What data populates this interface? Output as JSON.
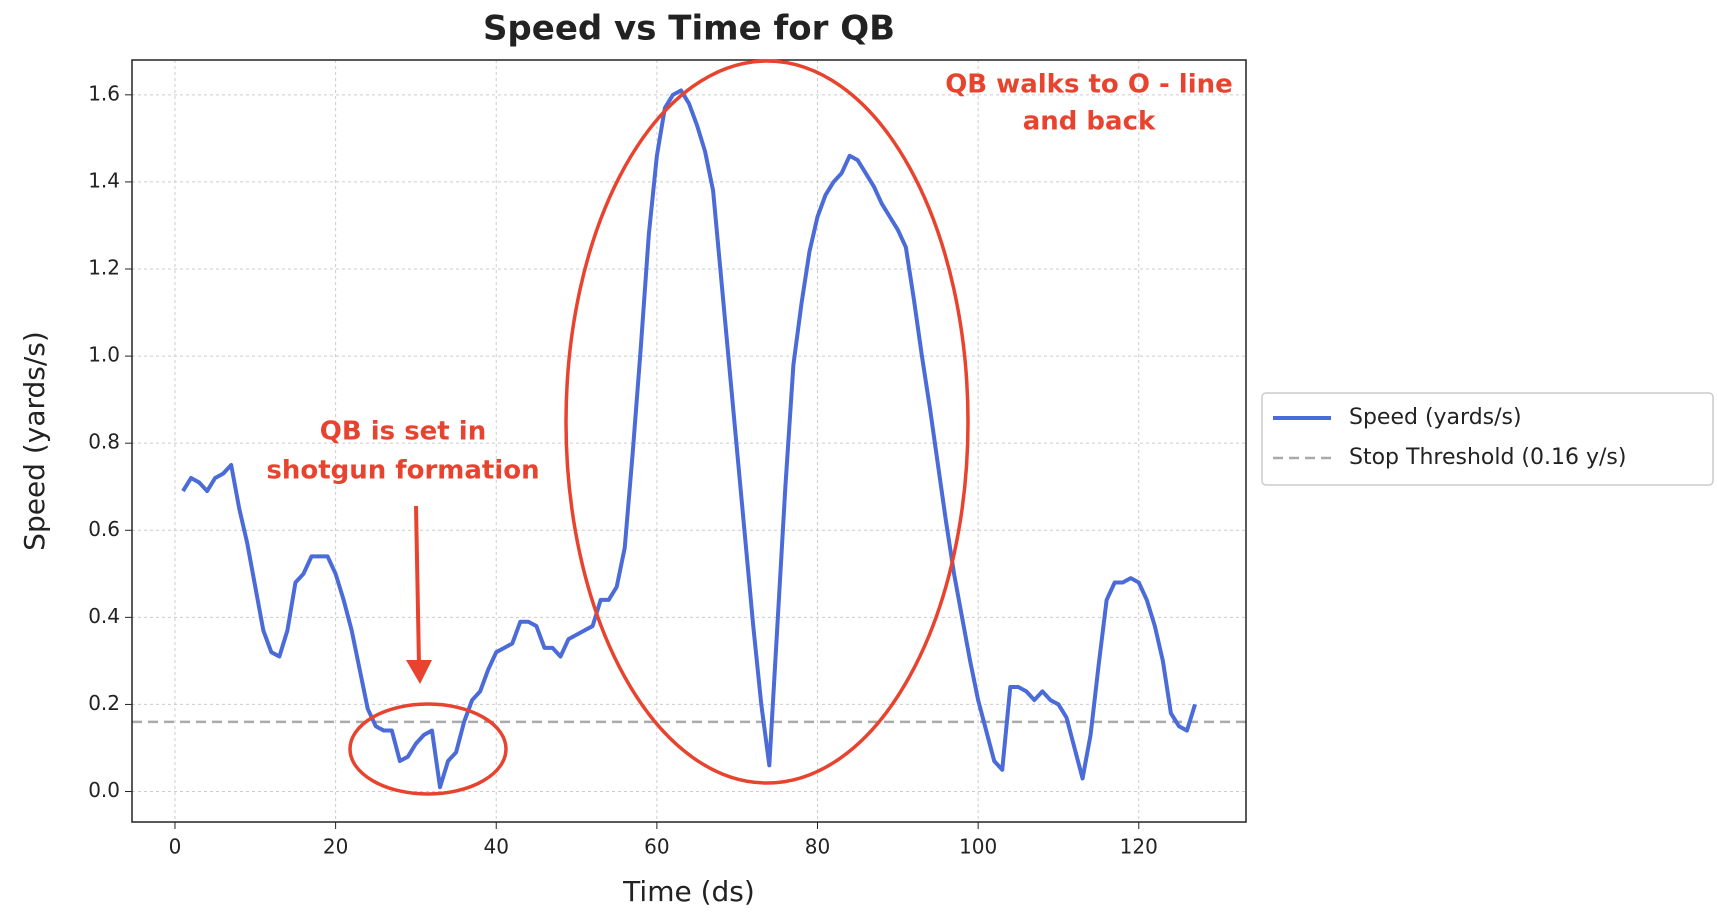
{
  "chart_data": {
    "type": "line",
    "title": "Speed vs Time for QB",
    "x_label": "Time (ds)",
    "y_label": "Speed (yards/s)",
    "x": [
      1,
      2,
      3,
      4,
      5,
      6,
      7,
      8,
      9,
      10,
      11,
      12,
      13,
      14,
      15,
      16,
      17,
      18,
      19,
      20,
      21,
      22,
      23,
      24,
      25,
      26,
      27,
      28,
      29,
      30,
      31,
      32,
      33,
      34,
      35,
      36,
      37,
      38,
      39,
      40,
      41,
      42,
      43,
      44,
      45,
      46,
      47,
      48,
      49,
      50,
      51,
      52,
      53,
      54,
      55,
      56,
      57,
      58,
      59,
      60,
      61,
      62,
      63,
      64,
      65,
      66,
      67,
      68,
      69,
      70,
      71,
      72,
      73,
      74,
      75,
      76,
      77,
      78,
      79,
      80,
      81,
      82,
      83,
      84,
      85,
      86,
      87,
      88,
      89,
      90,
      91,
      92,
      93,
      94,
      95,
      96,
      97,
      98,
      99,
      100,
      101,
      102,
      103,
      104,
      105,
      106,
      107,
      108,
      109,
      110,
      111,
      112,
      113,
      114,
      115,
      116,
      117,
      118,
      119,
      120,
      121,
      122,
      123,
      124,
      125,
      126,
      127
    ],
    "series": [
      {
        "name": "Speed (yards/s)",
        "color": "#4a6bd8",
        "values": [
          0.69,
          0.72,
          0.71,
          0.69,
          0.72,
          0.73,
          0.75,
          0.65,
          0.57,
          0.47,
          0.37,
          0.32,
          0.31,
          0.37,
          0.48,
          0.5,
          0.54,
          0.54,
          0.54,
          0.5,
          0.44,
          0.37,
          0.28,
          0.19,
          0.15,
          0.14,
          0.14,
          0.07,
          0.08,
          0.11,
          0.13,
          0.14,
          0.01,
          0.07,
          0.09,
          0.16,
          0.21,
          0.23,
          0.28,
          0.32,
          0.33,
          0.34,
          0.39,
          0.39,
          0.38,
          0.33,
          0.33,
          0.31,
          0.35,
          0.36,
          0.37,
          0.38,
          0.44,
          0.44,
          0.47,
          0.56,
          0.78,
          1.02,
          1.28,
          1.46,
          1.57,
          1.6,
          1.61,
          1.58,
          1.53,
          1.47,
          1.38,
          1.18,
          0.98,
          0.78,
          0.58,
          0.38,
          0.2,
          0.06,
          0.38,
          0.7,
          0.98,
          1.12,
          1.24,
          1.32,
          1.37,
          1.4,
          1.42,
          1.46,
          1.45,
          1.42,
          1.39,
          1.35,
          1.32,
          1.29,
          1.25,
          1.13,
          1.0,
          0.88,
          0.75,
          0.62,
          0.5,
          0.4,
          0.3,
          0.21,
          0.14,
          0.07,
          0.05,
          0.24,
          0.24,
          0.23,
          0.21,
          0.23,
          0.21,
          0.2,
          0.17,
          0.1,
          0.03,
          0.13,
          0.29,
          0.44,
          0.48,
          0.48,
          0.49,
          0.48,
          0.44,
          0.38,
          0.3,
          0.18,
          0.15,
          0.14,
          0.2
        ]
      }
    ],
    "threshold": {
      "name": "Stop Threshold (0.16 y/s)",
      "value": 0.16,
      "color": "#aaaaaa"
    },
    "xlim": [
      -5.35,
      133.35
    ],
    "ylim": [
      -0.07,
      1.68
    ],
    "xticks": [
      0,
      20,
      40,
      60,
      80,
      100,
      120
    ],
    "yticks": [
      {
        "value": 0,
        "label": "0.0"
      },
      {
        "value": 0.2,
        "label": "0.2"
      },
      {
        "value": 0.4,
        "label": "0.4"
      },
      {
        "value": 0.6,
        "label": "0.6"
      },
      {
        "value": 0.8,
        "label": "0.8"
      },
      {
        "value": 1.0,
        "label": "1.0"
      },
      {
        "value": 1.2,
        "label": "1.2"
      },
      {
        "value": 1.4,
        "label": "1.4"
      },
      {
        "value": 1.6,
        "label": "1.6"
      }
    ],
    "grid": true,
    "legend": "outside-right",
    "annotations": [
      {
        "lines": [
          "QB walks to O - line",
          "and back"
        ],
        "color": "#e8432e"
      },
      {
        "lines": [
          "QB is set in",
          "shotgun formation"
        ],
        "color": "#e8432e"
      }
    ]
  }
}
